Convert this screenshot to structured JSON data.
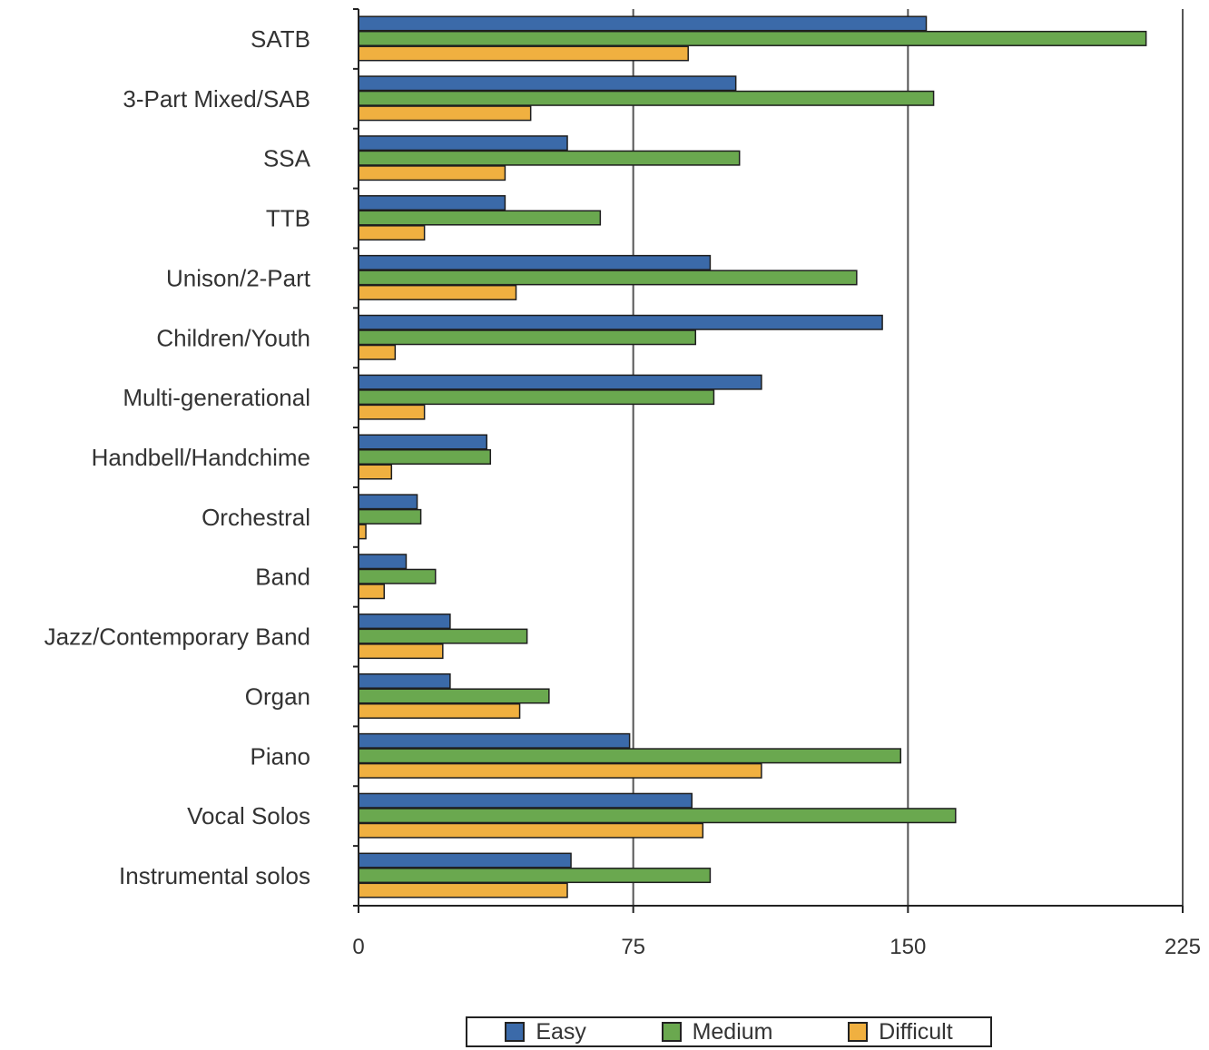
{
  "chart_data": {
    "type": "bar",
    "orientation": "horizontal",
    "categories": [
      "SATB",
      "3-Part Mixed/SAB",
      "SSA",
      "TTB",
      "Unison/2-Part",
      "Children/Youth",
      "Multi-generational",
      "Handbell/Handchime",
      "Orchestral",
      "Band",
      "Jazz/Contemporary Band",
      "Organ",
      "Piano",
      "Vocal Solos",
      "Instrumental solos"
    ],
    "series": [
      {
        "name": "Easy",
        "color": "#3b6aa9",
        "values": [
          155,
          103,
          57,
          40,
          96,
          143,
          110,
          35,
          16,
          13,
          25,
          25,
          74,
          91,
          58
        ]
      },
      {
        "name": "Medium",
        "color": "#6aa84f",
        "values": [
          215,
          157,
          104,
          66,
          136,
          92,
          97,
          36,
          17,
          21,
          46,
          52,
          148,
          163,
          96
        ]
      },
      {
        "name": "Difficult",
        "color": "#f0b040",
        "values": [
          90,
          47,
          40,
          18,
          43,
          10,
          18,
          9,
          2,
          7,
          23,
          44,
          110,
          94,
          57
        ]
      }
    ],
    "xlim": [
      0,
      225
    ],
    "xticks": [
      "0",
      "75",
      "150",
      "225"
    ],
    "grid": true,
    "legend_position": "bottom",
    "title": "",
    "xlabel": "",
    "ylabel": ""
  }
}
